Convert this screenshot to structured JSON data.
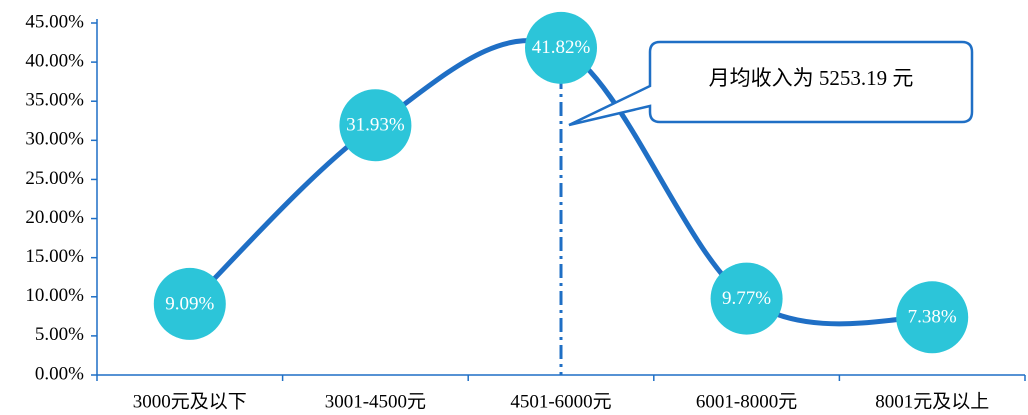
{
  "chart_data": {
    "type": "line",
    "categories": [
      "3000元及以下",
      "3001-4500元",
      "4501-6000元",
      "6001-8000元",
      "8001元及以上"
    ],
    "values": [
      9.09,
      31.93,
      41.82,
      9.77,
      7.38
    ],
    "data_labels": [
      "9.09%",
      "31.93%",
      "41.82%",
      "9.77%",
      "7.38%"
    ],
    "y_ticks": [
      "0.00%",
      "5.00%",
      "10.00%",
      "15.00%",
      "20.00%",
      "25.00%",
      "30.00%",
      "35.00%",
      "40.00%",
      "45.00%"
    ],
    "ylim": [
      0,
      45
    ],
    "smooth": true,
    "grid": false,
    "colors": {
      "line": "#1f6fc5",
      "marker": "#2cc5d9",
      "axis": "#1f6fc5",
      "callout_border": "#1f6fc5"
    },
    "reference_line": {
      "category_index": 2,
      "style": "dash-dot"
    },
    "annotation": {
      "text": "月均收入为 5253.19 元"
    }
  }
}
